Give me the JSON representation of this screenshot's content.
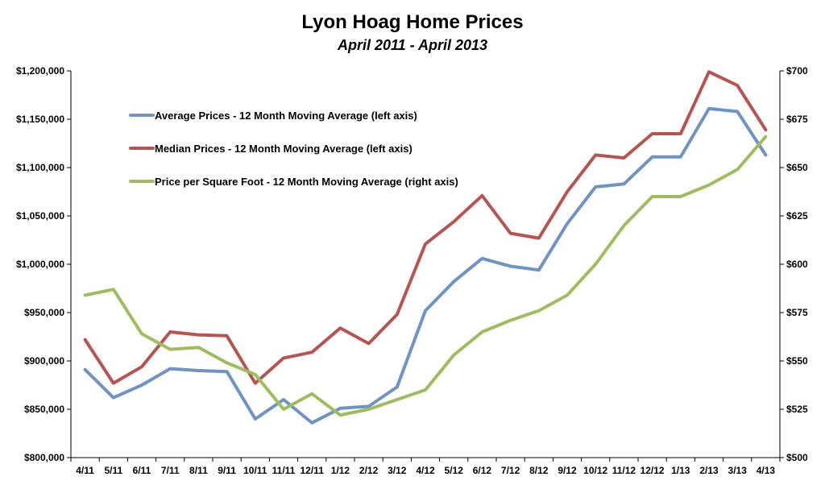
{
  "chart_data": {
    "type": "line",
    "title": "Lyon Hoag Home Prices",
    "subtitle": "April 2011 - April 2013",
    "categories": [
      "4/11",
      "5/11",
      "6/11",
      "7/11",
      "8/11",
      "9/11",
      "10/11",
      "11/11",
      "12/11",
      "1/12",
      "2/12",
      "3/12",
      "4/12",
      "5/12",
      "6/12",
      "7/12",
      "8/12",
      "9/12",
      "10/12",
      "11/12",
      "12/12",
      "1/13",
      "2/13",
      "3/13",
      "4/13"
    ],
    "left_axis": {
      "ylim": [
        800000,
        1200000
      ],
      "ticks": [
        "$800,000",
        "$850,000",
        "$900,000",
        "$950,000",
        "$1,000,000",
        "$1,050,000",
        "$1,100,000",
        "$1,150,000",
        "$1,200,000"
      ]
    },
    "right_axis": {
      "ylim": [
        500,
        700
      ],
      "ticks": [
        "$500",
        "$525",
        "$550",
        "$575",
        "$600",
        "$625",
        "$650",
        "$675",
        "$700"
      ]
    },
    "series": [
      {
        "name": "Average Prices - 12 Month Moving Average (left axis)",
        "axis": "left",
        "color": "#6f93c4",
        "values": [
          891000,
          862000,
          875000,
          892000,
          890000,
          889000,
          840000,
          860000,
          836000,
          851000,
          853000,
          873000,
          952000,
          982000,
          1006000,
          998000,
          994000,
          1042000,
          1080000,
          1083000,
          1111000,
          1111000,
          1161000,
          1158000,
          1113000
        ]
      },
      {
        "name": "Median Prices - 12 Month Moving Average (left axis)",
        "axis": "left",
        "color": "#b85450",
        "values": [
          922000,
          877000,
          894000,
          930000,
          927000,
          926000,
          877000,
          903000,
          909000,
          934000,
          918000,
          948000,
          1021000,
          1044000,
          1071000,
          1032000,
          1027000,
          1075000,
          1113000,
          1110000,
          1135000,
          1135000,
          1199000,
          1185000,
          1139000
        ]
      },
      {
        "name": "Price per Square Foot - 12 Month Moving Average (right axis)",
        "axis": "right",
        "color": "#9fbd5f",
        "values": [
          584,
          587,
          564,
          556,
          557,
          549,
          543,
          525,
          533,
          522,
          525,
          530,
          535,
          553,
          565,
          571,
          576,
          584,
          600,
          620,
          635,
          635,
          641,
          649,
          666
        ]
      }
    ],
    "legend_position": "top-left",
    "grid": false
  }
}
